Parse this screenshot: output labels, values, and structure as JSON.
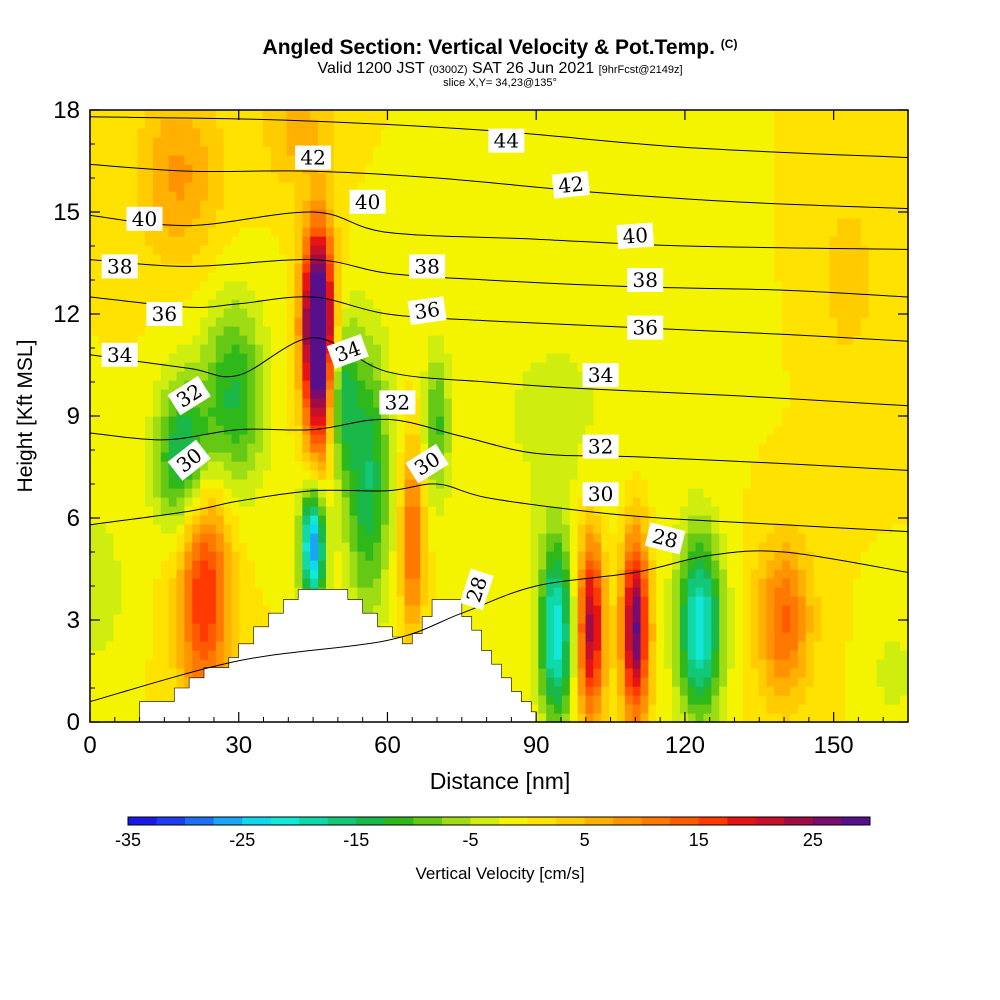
{
  "header": {
    "title": "Angled Section: Vertical Velocity & Pot.Temp.",
    "title_mark": "(C)",
    "valid_prefix": "Valid 1200 JST",
    "valid_utc": "(0300Z)",
    "valid_date": "SAT 26 Jun 2021",
    "forecast": "[9hrFcst@2149z]",
    "slice": "slice X,Y= 34,23@135°"
  },
  "chart_data": {
    "type": "heatmap",
    "xlabel": "Distance [nm]",
    "ylabel": "Height [Kft MSL]",
    "xlim": [
      0,
      165
    ],
    "ylim": [
      0,
      18
    ],
    "x_ticks": [
      0,
      30,
      60,
      90,
      120,
      150
    ],
    "y_ticks": [
      0,
      3,
      6,
      9,
      12,
      15,
      18
    ],
    "colorbar": {
      "title": "Vertical Velocity [cm/s]",
      "tick_values": [
        -35,
        -25,
        -15,
        -5,
        5,
        15,
        25
      ],
      "tick_labels": [
        "-35",
        "-25",
        "-15",
        "-5",
        "5",
        "15",
        "25"
      ],
      "range": [
        -35,
        30
      ],
      "colors": [
        "#1a1ae6",
        "#1f3cf2",
        "#1f6ef5",
        "#1aa6f5",
        "#0fd8f0",
        "#12e8d8",
        "#10d8a8",
        "#12c878",
        "#1ab848",
        "#2fb81a",
        "#64c814",
        "#9edc14",
        "#cfee10",
        "#f4f400",
        "#ffe200",
        "#ffcc00",
        "#ffb000",
        "#ff9400",
        "#ff7800",
        "#ff5a00",
        "#ff3a00",
        "#e61414",
        "#c8102a",
        "#a00c46",
        "#7a0c6e",
        "#56108c"
      ]
    },
    "velocity_field": {
      "background": 0,
      "cells": [
        {
          "x": 23,
          "y": 4.0,
          "sx": 3.6,
          "sy": 2.6,
          "v": 18
        },
        {
          "x": 19,
          "y": 7.8,
          "sx": 4.0,
          "sy": 1.6,
          "v": -17
        },
        {
          "x": 29,
          "y": 9.6,
          "sx": 4.5,
          "sy": 2.0,
          "v": -13
        },
        {
          "x": 45,
          "y": 5.2,
          "sx": 1.8,
          "sy": 1.3,
          "v": -28
        },
        {
          "x": 46,
          "y": 12.0,
          "sx": 2.2,
          "sy": 1.8,
          "v": 28
        },
        {
          "x": 46,
          "y": 10.4,
          "sx": 2.0,
          "sy": 2.4,
          "v": 18
        },
        {
          "x": 56,
          "y": 7.2,
          "sx": 3.2,
          "sy": 2.8,
          "v": -15
        },
        {
          "x": 51,
          "y": 9.6,
          "sx": 2.0,
          "sy": 1.6,
          "v": -12
        },
        {
          "x": 65,
          "y": 5.4,
          "sx": 1.6,
          "sy": 1.9,
          "v": 14
        },
        {
          "x": 70,
          "y": 8.8,
          "sx": 1.8,
          "sy": 1.5,
          "v": -10
        },
        {
          "x": 94,
          "y": 2.6,
          "sx": 2.4,
          "sy": 1.9,
          "v": -22
        },
        {
          "x": 101,
          "y": 2.8,
          "sx": 1.9,
          "sy": 1.9,
          "v": 24
        },
        {
          "x": 110,
          "y": 2.8,
          "sx": 1.9,
          "sy": 1.9,
          "v": 28
        },
        {
          "x": 123,
          "y": 2.8,
          "sx": 3.2,
          "sy": 1.9,
          "v": -22
        },
        {
          "x": 140,
          "y": 3.0,
          "sx": 3.8,
          "sy": 1.6,
          "v": 13
        },
        {
          "x": 18,
          "y": 16.1,
          "sx": 6.0,
          "sy": 1.8,
          "v": 8
        },
        {
          "x": 42,
          "y": 17.4,
          "sx": 5.0,
          "sy": 1.2,
          "v": 6
        },
        {
          "x": 94,
          "y": 9.0,
          "sx": 14.0,
          "sy": 3.0,
          "v": -3
        },
        {
          "x": 153,
          "y": 13.0,
          "sx": 4.0,
          "sy": 2.0,
          "v": 4
        },
        {
          "x": 2,
          "y": 4.0,
          "sx": 4.0,
          "sy": 2.0,
          "v": -4
        },
        {
          "x": 162,
          "y": 1.5,
          "sx": 3.0,
          "sy": 1.0,
          "v": -4
        }
      ]
    },
    "terrain": [
      [
        10,
        0.6
      ],
      [
        12,
        0.6
      ],
      [
        17,
        1.0
      ],
      [
        20,
        1.3
      ],
      [
        23,
        1.6
      ],
      [
        28,
        1.9
      ],
      [
        30,
        2.3
      ],
      [
        33,
        2.8
      ],
      [
        36,
        3.2
      ],
      [
        39,
        3.6
      ],
      [
        42,
        3.9
      ],
      [
        46,
        3.9
      ],
      [
        49,
        3.9
      ],
      [
        52,
        3.6
      ],
      [
        55,
        3.2
      ],
      [
        58,
        2.8
      ],
      [
        61,
        2.5
      ],
      [
        63,
        2.3
      ],
      [
        65,
        2.6
      ],
      [
        67,
        3.1
      ],
      [
        69,
        3.6
      ],
      [
        72,
        3.6
      ],
      [
        75,
        3.1
      ],
      [
        77,
        2.7
      ],
      [
        79,
        2.1
      ],
      [
        81,
        1.7
      ],
      [
        83,
        1.3
      ],
      [
        85,
        0.9
      ],
      [
        87,
        0.6
      ],
      [
        89,
        0.3
      ],
      [
        90,
        0
      ]
    ],
    "isentropes": [
      {
        "level": 28,
        "points": [
          [
            0,
            0.6
          ],
          [
            30,
            1.8
          ],
          [
            60,
            2.4
          ],
          [
            75,
            3.2
          ],
          [
            90,
            4.0
          ],
          [
            110,
            4.4
          ],
          [
            125,
            4.9
          ],
          [
            140,
            5.0
          ],
          [
            165,
            4.4
          ]
        ]
      },
      {
        "level": 30,
        "points": [
          [
            0,
            5.8
          ],
          [
            20,
            6.2
          ],
          [
            30,
            6.5
          ],
          [
            45,
            6.8
          ],
          [
            60,
            6.8
          ],
          [
            70,
            7.0
          ],
          [
            80,
            6.6
          ],
          [
            100,
            6.2
          ],
          [
            115,
            6.0
          ],
          [
            140,
            5.8
          ],
          [
            165,
            5.6
          ]
        ]
      },
      {
        "level": 32,
        "points": [
          [
            0,
            8.5
          ],
          [
            15,
            8.3
          ],
          [
            30,
            8.6
          ],
          [
            45,
            8.6
          ],
          [
            60,
            8.9
          ],
          [
            75,
            8.4
          ],
          [
            90,
            7.9
          ],
          [
            110,
            7.8
          ],
          [
            140,
            7.6
          ],
          [
            165,
            7.4
          ]
        ]
      },
      {
        "level": 34,
        "points": [
          [
            0,
            10.8
          ],
          [
            20,
            10.4
          ],
          [
            30,
            10.2
          ],
          [
            45,
            11.3
          ],
          [
            60,
            10.3
          ],
          [
            80,
            10.0
          ],
          [
            100,
            9.8
          ],
          [
            130,
            9.6
          ],
          [
            165,
            9.3
          ]
        ]
      },
      {
        "level": 36,
        "points": [
          [
            0,
            12.5
          ],
          [
            20,
            12.2
          ],
          [
            30,
            12.3
          ],
          [
            45,
            12.5
          ],
          [
            60,
            12.0
          ],
          [
            80,
            11.8
          ],
          [
            110,
            11.6
          ],
          [
            140,
            11.4
          ],
          [
            165,
            11.2
          ]
        ]
      },
      {
        "level": 38,
        "points": [
          [
            0,
            13.6
          ],
          [
            20,
            13.4
          ],
          [
            45,
            13.6
          ],
          [
            60,
            13.2
          ],
          [
            80,
            13.0
          ],
          [
            110,
            12.8
          ],
          [
            140,
            12.7
          ],
          [
            165,
            12.5
          ]
        ]
      },
      {
        "level": 40,
        "points": [
          [
            0,
            14.9
          ],
          [
            20,
            14.6
          ],
          [
            45,
            15.0
          ],
          [
            60,
            14.4
          ],
          [
            90,
            14.2
          ],
          [
            120,
            14.0
          ],
          [
            165,
            13.9
          ]
        ]
      },
      {
        "level": 42,
        "points": [
          [
            0,
            16.4
          ],
          [
            20,
            16.2
          ],
          [
            45,
            16.2
          ],
          [
            70,
            16.0
          ],
          [
            100,
            15.6
          ],
          [
            130,
            15.3
          ],
          [
            165,
            15.1
          ]
        ]
      },
      {
        "level": 44,
        "points": [
          [
            0,
            17.8
          ],
          [
            40,
            17.7
          ],
          [
            80,
            17.4
          ],
          [
            120,
            16.9
          ],
          [
            165,
            16.6
          ]
        ]
      }
    ],
    "isentrope_labels": [
      {
        "text": "44",
        "x": 84,
        "y": 17.1,
        "angle": 0
      },
      {
        "text": "42",
        "x": 45,
        "y": 16.6,
        "angle": 0
      },
      {
        "text": "42",
        "x": 97,
        "y": 15.8,
        "angle": -6
      },
      {
        "text": "40",
        "x": 11,
        "y": 14.8,
        "angle": 0
      },
      {
        "text": "40",
        "x": 56,
        "y": 15.3,
        "angle": 0
      },
      {
        "text": "40",
        "x": 110,
        "y": 14.3,
        "angle": -4
      },
      {
        "text": "38",
        "x": 6,
        "y": 13.4,
        "angle": 0
      },
      {
        "text": "38",
        "x": 68,
        "y": 13.4,
        "angle": 0
      },
      {
        "text": "38",
        "x": 112,
        "y": 13.0,
        "angle": 0
      },
      {
        "text": "36",
        "x": 15,
        "y": 12.0,
        "angle": 0
      },
      {
        "text": "36",
        "x": 68,
        "y": 12.1,
        "angle": -8
      },
      {
        "text": "36",
        "x": 112,
        "y": 11.6,
        "angle": 0
      },
      {
        "text": "34",
        "x": 6,
        "y": 10.8,
        "angle": 0
      },
      {
        "text": "34",
        "x": 52,
        "y": 10.9,
        "angle": -20
      },
      {
        "text": "34",
        "x": 103,
        "y": 10.2,
        "angle": 0
      },
      {
        "text": "32",
        "x": 20,
        "y": 9.6,
        "angle": -32
      },
      {
        "text": "32",
        "x": 62,
        "y": 9.4,
        "angle": 0
      },
      {
        "text": "32",
        "x": 103,
        "y": 8.1,
        "angle": 0
      },
      {
        "text": "30",
        "x": 20,
        "y": 7.7,
        "angle": -38
      },
      {
        "text": "30",
        "x": 68,
        "y": 7.6,
        "angle": -32
      },
      {
        "text": "30",
        "x": 103,
        "y": 6.7,
        "angle": 0
      },
      {
        "text": "28",
        "x": 116,
        "y": 5.4,
        "angle": 14
      },
      {
        "text": "28",
        "x": 78,
        "y": 3.9,
        "angle": -72
      }
    ]
  }
}
